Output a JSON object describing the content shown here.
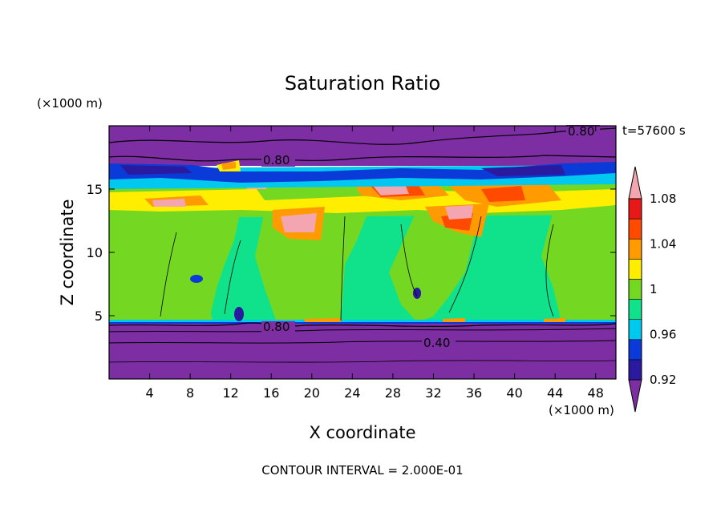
{
  "chart_data": {
    "type": "heatmap",
    "title": "Saturation Ratio",
    "xlabel": "X coordinate",
    "ylabel": "Z coordinate",
    "x_unit": "(×1000 m)",
    "y_unit": "(×1000 m)",
    "time_label": "t=57600 s",
    "footer": "CONTOUR INTERVAL = 2.000E-01",
    "xlim": [
      0,
      50
    ],
    "ylim": [
      0,
      20
    ],
    "x_ticks": [
      "4",
      "8",
      "12",
      "16",
      "20",
      "24",
      "28",
      "32",
      "36",
      "40",
      "44",
      "48"
    ],
    "y_ticks": [
      "5",
      "10",
      "15"
    ],
    "colorbar": {
      "levels": [
        0.9,
        0.92,
        0.94,
        0.96,
        0.98,
        1.0,
        1.02,
        1.04,
        1.06,
        1.08,
        1.1
      ],
      "tick_labels": [
        "0.92",
        "0.96",
        "1",
        "1.04",
        "1.08"
      ],
      "colors": [
        "#7c2ea2",
        "#2a1aa0",
        "#0a3ad8",
        "#00c8ee",
        "#10e28c",
        "#74d822",
        "#ffee00",
        "#ff9a00",
        "#ff4a00",
        "#e81818",
        "#f4a6b0"
      ]
    },
    "contour_labels": [
      "0.80",
      "0.80",
      "0.80",
      "0.40"
    ],
    "regions": [
      {
        "layer": "z 0 - 4.5 km",
        "value_range": "< 0.90"
      },
      {
        "layer": "z 4.5 - 12 km",
        "value_range": "0.98 - 1.02"
      },
      {
        "layer": "z 12 - 16 km",
        "value_range": "1.02 - 1.10"
      },
      {
        "layer": "z 16 - 17 km",
        "value_range": "0.90 - 0.98"
      },
      {
        "layer": "z 17 - 20 km",
        "value_range": "< 0.90"
      }
    ]
  }
}
